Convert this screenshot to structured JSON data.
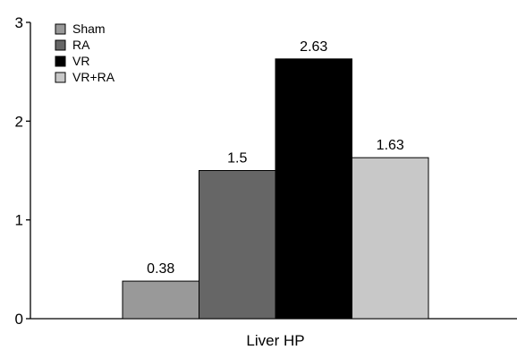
{
  "chart_data": {
    "type": "bar",
    "categories": [
      "Liver HP"
    ],
    "series": [
      {
        "name": "Sham",
        "values": [
          0.38
        ],
        "color": "#999999",
        "label": "0.38"
      },
      {
        "name": "RA",
        "values": [
          1.5
        ],
        "color": "#666666",
        "label": "1.5"
      },
      {
        "name": "VR",
        "values": [
          2.63
        ],
        "color": "#000000",
        "label": "2.63"
      },
      {
        "name": "VR+RA",
        "values": [
          1.63
        ],
        "color": "#c8c8c8",
        "label": "1.63"
      }
    ],
    "title": "",
    "xlabel": "Liver HP",
    "ylabel": "",
    "ylim": [
      0,
      3
    ],
    "yticks": [
      0,
      1,
      2,
      3
    ],
    "grid": false,
    "legend": "top-left"
  }
}
